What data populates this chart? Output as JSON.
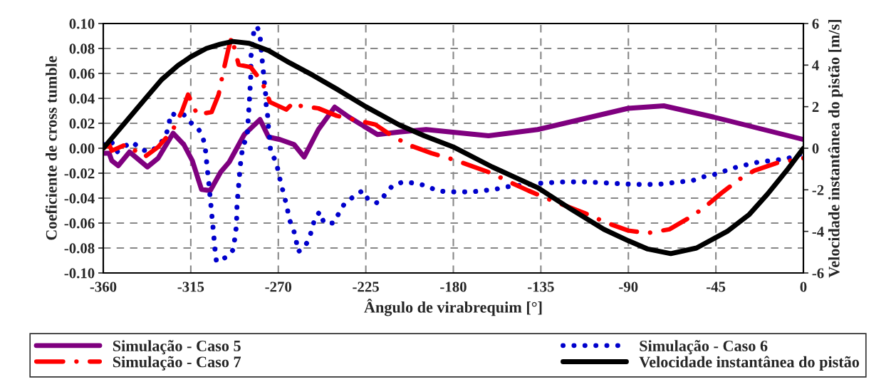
{
  "chart_data": {
    "type": "line",
    "xlabel": "Ângulo de virabrequim [°]",
    "ylabel": "Coeficiente de cross tumble",
    "y2label": "Velocidade instantânea do pistão [m/s]",
    "xlim": [
      -360,
      0
    ],
    "xticks": [
      -360,
      -315,
      -270,
      -225,
      -180,
      -135,
      -90,
      -45,
      0
    ],
    "ylim": [
      -0.1,
      0.1
    ],
    "yticks": [
      {
        "value": -0.1,
        "label": "-0.10"
      },
      {
        "value": -0.08,
        "label": "-0.08"
      },
      {
        "value": -0.06,
        "label": "-0.06"
      },
      {
        "value": -0.04,
        "label": "-0.04"
      },
      {
        "value": -0.02,
        "label": "-0.02"
      },
      {
        "value": 0,
        "label": "0.00"
      },
      {
        "value": 0.02,
        "label": "0.02"
      },
      {
        "value": 0.04,
        "label": "0.04"
      },
      {
        "value": 0.06,
        "label": "0.06"
      },
      {
        "value": 0.08,
        "label": "0.08"
      },
      {
        "value": 0.1,
        "label": "0.10"
      }
    ],
    "y2lim": [
      -6,
      6
    ],
    "y2ticks": [
      -6,
      -4,
      -2,
      0,
      2,
      4,
      6
    ],
    "grid": true,
    "legend": "bottom",
    "series": [
      {
        "name": "Simulação - Caso 5",
        "color": "#7f007f",
        "line_style": "solid",
        "x": [
          -360,
          -357,
          -355.6,
          -352.3,
          -346.5,
          -337.3,
          -331.8,
          -324.1,
          -318.6,
          -314.2,
          -309.5,
          -305,
          -299.6,
          -295.2,
          -287.5,
          -279.4,
          -275,
          -269.2,
          -261.9,
          -256.7,
          -249.4,
          -241,
          -233.7,
          -219,
          -208,
          -194,
          -161.9,
          -136.6,
          -90.1,
          -71.8,
          -46.2,
          0
        ],
        "values": [
          -0.004,
          -0.004,
          -0.01,
          -0.014,
          -0.003,
          -0.015,
          -0.008,
          0.012,
          0.003,
          -0.01,
          -0.033,
          -0.034,
          -0.019,
          -0.011,
          0.011,
          0.023,
          0.009,
          0.007,
          0.003,
          -0.007,
          0.015,
          0.033,
          0.025,
          0.011,
          0.013,
          0.015,
          0.01,
          0.015,
          0.032,
          0.034,
          0.025,
          0.007
        ]
      },
      {
        "name": "Simulação - Caso 6",
        "color": "#0000cc",
        "line_style": "dotted",
        "x": [
          -360,
          -356,
          -353,
          -349.7,
          -345,
          -340.6,
          -335.8,
          -331,
          -327.8,
          -326.3,
          -325.2,
          -321.6,
          -318.6,
          -316.4,
          -311.7,
          -309,
          -307.6,
          -306.5,
          -305.8,
          -304.7,
          -303.6,
          -302.5,
          -301.8,
          -296.3,
          -293,
          -292.3,
          -291.5,
          -291.2,
          -290.1,
          -289.7,
          -289,
          -288.2,
          -286,
          -285.7,
          -284.9,
          -284.6,
          -284.2,
          -284,
          -282.7,
          -280.9,
          -279.4,
          -278.3,
          -277.2,
          -276.5,
          -276.2,
          -275.4,
          -275,
          -274.3,
          -274,
          -271,
          -269.9,
          -268.5,
          -267,
          -265.5,
          -264.4,
          -262.2,
          -260.8,
          -260,
          -257.5,
          -254.5,
          -252.7,
          -251.2,
          -248.7,
          -246.5,
          -241.7,
          -238.8,
          -236.2,
          -231.5,
          -226.7,
          -223.4,
          -218.7,
          -215,
          -211.3,
          -205.8,
          -200,
          -194,
          -188.6,
          -182.8,
          -176.9,
          -170.7,
          -164.8,
          -158.6,
          -153,
          -135.2,
          -123.1,
          -111,
          -99.3,
          -87.2,
          -75.1,
          -63.4,
          -57.2,
          -51.7,
          -45.8,
          -40,
          -34.1,
          -28.6,
          -22.8,
          -16.9,
          -11,
          -4.8,
          -2
        ],
        "values": [
          0.003,
          0.006,
          -0.003,
          0.001,
          0.005,
          -0.001,
          -0.003,
          0.003,
          0.01,
          0.019,
          0.028,
          0.026,
          0.027,
          0.022,
          0.017,
          0.01,
          0.001,
          -0.017,
          -0.027,
          -0.045,
          -0.063,
          -0.082,
          -0.091,
          -0.087,
          -0.081,
          -0.071,
          -0.062,
          -0.044,
          -0.025,
          -0.016,
          -0.007,
          0.002,
          0.009,
          0.018,
          0.037,
          0.046,
          0.055,
          0.074,
          0.092,
          0.098,
          0.09,
          0.071,
          0.053,
          0.043,
          0.034,
          0.025,
          0.015,
          0.006,
          -0.003,
          -0.011,
          -0.02,
          -0.029,
          -0.038,
          -0.047,
          -0.057,
          -0.065,
          -0.074,
          -0.083,
          -0.081,
          -0.074,
          -0.065,
          -0.056,
          -0.051,
          -0.06,
          -0.06,
          -0.052,
          -0.045,
          -0.039,
          -0.034,
          -0.042,
          -0.044,
          -0.037,
          -0.03,
          -0.027,
          -0.028,
          -0.03,
          -0.034,
          -0.035,
          -0.035,
          -0.035,
          -0.034,
          -0.033,
          -0.031,
          -0.028,
          -0.027,
          -0.027,
          -0.028,
          -0.029,
          -0.029,
          -0.027,
          -0.026,
          -0.023,
          -0.021,
          -0.018,
          -0.015,
          -0.013,
          -0.011,
          -0.01,
          -0.009,
          -0.007,
          -0.005
        ]
      },
      {
        "name": "Simulação - Caso 7",
        "color": "#ff0000",
        "line_style": "dashdot",
        "x": [
          -360,
          -357,
          -355.6,
          -348.3,
          -338.8,
          -331.8,
          -324.5,
          -319.7,
          -316.4,
          -311.7,
          -304.3,
          -300.7,
          -298.5,
          -295.9,
          -294,
          -290.4,
          -284.2,
          -278.3,
          -274.3,
          -265.9,
          -261.9,
          -258.6,
          -249.4,
          -239.9,
          -231.1,
          -220.1,
          -210.6,
          -201.8,
          -191.2,
          -180.2,
          -171.1,
          -160.4,
          -149.8,
          -141.4,
          -130.8,
          -111,
          -100.8,
          -90.1,
          -80.2,
          -68.9,
          -59,
          -51.3,
          -42.2,
          -33,
          -25.3,
          -14,
          0
        ],
        "values": [
          0.0,
          0.003,
          -0.002,
          0.003,
          -0.007,
          0.001,
          0.014,
          0.029,
          0.043,
          0.027,
          0.029,
          0.043,
          0.06,
          0.078,
          0.089,
          0.067,
          0.065,
          0.053,
          0.037,
          0.031,
          0.037,
          0.034,
          0.032,
          0.026,
          0.023,
          0.019,
          0.009,
          0.002,
          -0.004,
          -0.009,
          -0.014,
          -0.02,
          -0.028,
          -0.034,
          -0.041,
          -0.053,
          -0.06,
          -0.066,
          -0.068,
          -0.065,
          -0.056,
          -0.048,
          -0.036,
          -0.025,
          -0.018,
          -0.012,
          -0.008
        ]
      },
      {
        "name": "Velocidade instantânea do pistão",
        "color": "#000000",
        "line_style": "solid",
        "axis": "y2",
        "x": [
          -360,
          -350,
          -337.3,
          -330,
          -321.6,
          -315,
          -307,
          -300,
          -293.4,
          -285,
          -275,
          -264,
          -252,
          -240,
          -225,
          -208,
          -195,
          -180.2,
          -160,
          -136.6,
          -120,
          -102.6,
          -90,
          -80,
          -68.2,
          -55,
          -39.2,
          -28,
          -18.4,
          -8,
          0
        ],
        "values": [
          0,
          1.1,
          2.5,
          3.3,
          3.98,
          4.4,
          4.8,
          5.0,
          5.14,
          5.05,
          4.7,
          4.1,
          3.5,
          2.85,
          2.0,
          1.13,
          0.6,
          0.07,
          -0.9,
          -1.9,
          -2.9,
          -3.9,
          -4.45,
          -4.85,
          -5.07,
          -4.8,
          -4.0,
          -3.2,
          -2.2,
          -1.0,
          0
        ]
      }
    ]
  }
}
